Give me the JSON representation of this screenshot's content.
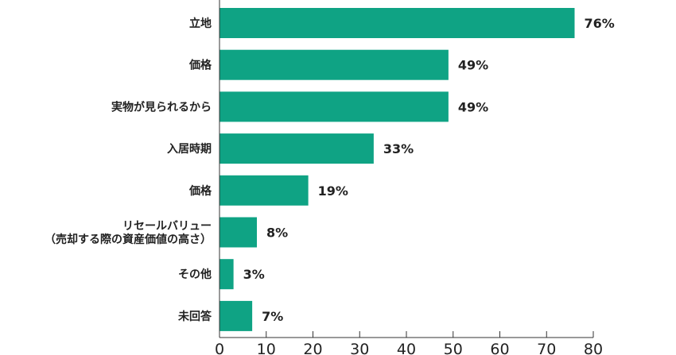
{
  "chart_data": {
    "type": "bar",
    "orientation": "horizontal",
    "categories": [
      [
        "立地"
      ],
      [
        "価格"
      ],
      [
        "実物が見られるから"
      ],
      [
        "入居時期"
      ],
      [
        "価格"
      ],
      [
        "リセールバリュー",
        "（売却する際の資産価値の高さ）"
      ],
      [
        "その他"
      ],
      [
        "未回答"
      ]
    ],
    "values": [
      76,
      49,
      49,
      33,
      19,
      8,
      3,
      7
    ],
    "value_labels": [
      "76%",
      "49%",
      "49%",
      "33%",
      "19%",
      "8%",
      "3%",
      "7%"
    ],
    "xlim": [
      0,
      80
    ],
    "xticks": [
      "0",
      "10",
      "20",
      "30",
      "40",
      "50",
      "60",
      "70",
      "80"
    ],
    "xlabel": "",
    "ylabel": "",
    "title": "",
    "grid": false,
    "legend": "none",
    "bar_color": "#0fa384"
  }
}
